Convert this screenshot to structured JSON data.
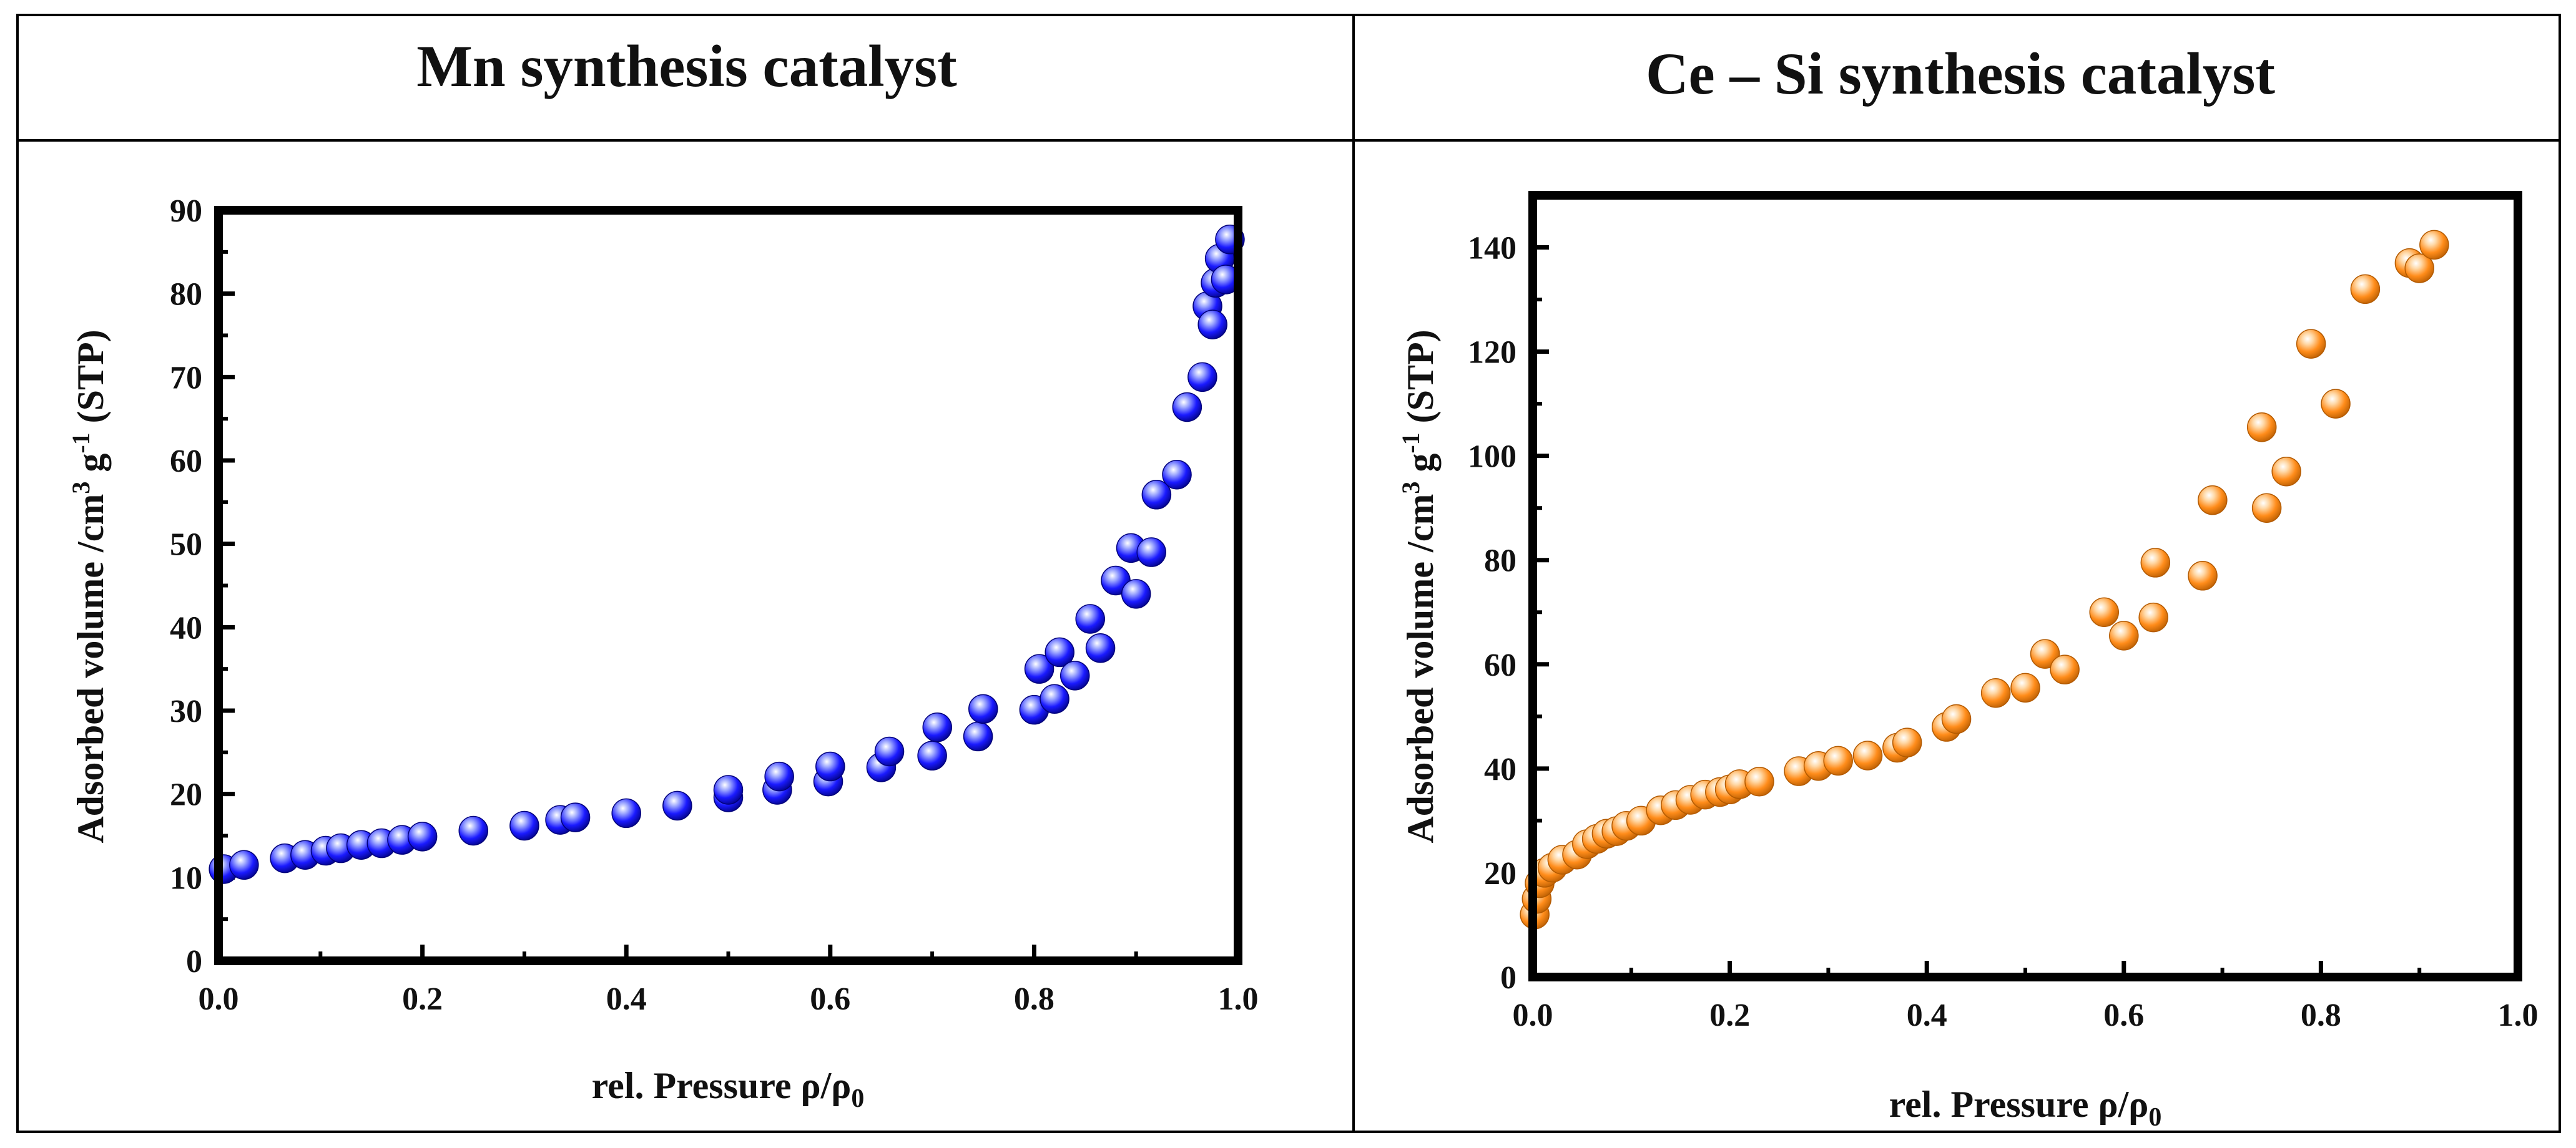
{
  "chart_data": [
    {
      "type": "scatter",
      "title": "Mn synthesis catalyst",
      "xlabel": "rel. Pressure ρ/ρ",
      "xlabel_sub": "0",
      "ylabel_prefix": "Adsorbed volume /cm",
      "ylabel_sup1": "3",
      "ylabel_mid": " g",
      "ylabel_sup2": "-1",
      "ylabel_suffix": " (STP)",
      "xlim": [
        0,
        1
      ],
      "ylim": [
        0,
        90
      ],
      "xticks": [
        "0.0",
        "0.2",
        "0.4",
        "0.6",
        "0.8",
        "1.0"
      ],
      "xtick_values": [
        0,
        0.2,
        0.4,
        0.6,
        0.8,
        1.0
      ],
      "yticks": [
        "0",
        "10",
        "20",
        "30",
        "40",
        "50",
        "60",
        "70",
        "80",
        "90"
      ],
      "ytick_values": [
        0,
        10,
        20,
        30,
        40,
        50,
        60,
        70,
        80,
        90
      ],
      "marker_color": "#1a1aff",
      "marker_highlight": "#9ea8ff",
      "marker_dark": "#00007a",
      "series": [
        {
          "name": "Mn",
          "x": [
            0.005,
            0.025,
            0.065,
            0.085,
            0.105,
            0.12,
            0.14,
            0.16,
            0.18,
            0.2,
            0.25,
            0.3,
            0.335,
            0.35,
            0.4,
            0.45,
            0.5,
            0.5,
            0.548,
            0.55,
            0.598,
            0.6,
            0.65,
            0.658,
            0.7,
            0.705,
            0.745,
            0.75,
            0.8,
            0.805,
            0.82,
            0.825,
            0.84,
            0.855,
            0.865,
            0.88,
            0.895,
            0.9,
            0.915,
            0.92,
            0.94,
            0.95,
            0.965,
            0.97,
            0.975,
            0.978,
            0.982,
            0.988,
            0.992
          ],
          "y": [
            11,
            11.5,
            12.3,
            12.7,
            13.2,
            13.5,
            13.9,
            14.1,
            14.5,
            14.9,
            15.6,
            16.2,
            16.9,
            17.2,
            17.7,
            18.6,
            19.6,
            20.5,
            20.5,
            22.1,
            21.5,
            23.3,
            23.2,
            25.1,
            24.6,
            28,
            26.9,
            30.2,
            30.1,
            35,
            31.4,
            37,
            34.2,
            41,
            37.5,
            45.6,
            49.5,
            44,
            49,
            55.9,
            58.3,
            66.4,
            70,
            78.5,
            76.3,
            81.3,
            84.2,
            81.7,
            86.5
          ]
        }
      ]
    },
    {
      "type": "scatter",
      "title": "Ce – Si synthesis catalyst",
      "xlabel": "rel. Pressure ρ/ρ",
      "xlabel_sub": "0",
      "ylabel_prefix": "Adsorbed volume /cm",
      "ylabel_sup1": "3",
      "ylabel_mid": " g",
      "ylabel_sup2": "-1",
      "ylabel_suffix": " (STP)",
      "xlim": [
        0,
        1
      ],
      "ylim": [
        0,
        150
      ],
      "xticks": [
        "0.0",
        "0.2",
        "0.4",
        "0.6",
        "0.8",
        "1.0"
      ],
      "xtick_values": [
        0,
        0.2,
        0.4,
        0.6,
        0.8,
        1.0
      ],
      "yticks": [
        "0",
        "20",
        "40",
        "60",
        "80",
        "100",
        "120",
        "140"
      ],
      "ytick_values": [
        0,
        20,
        40,
        60,
        80,
        100,
        120,
        140
      ],
      "marker_color": "#ff8c1a",
      "marker_highlight": "#ffd9a8",
      "marker_dark": "#b35a00",
      "series": [
        {
          "name": "Ce-Si",
          "x": [
            0.002,
            0.004,
            0.007,
            0.012,
            0.02,
            0.03,
            0.045,
            0.055,
            0.065,
            0.075,
            0.085,
            0.095,
            0.11,
            0.13,
            0.145,
            0.16,
            0.175,
            0.19,
            0.2,
            0.21,
            0.23,
            0.27,
            0.29,
            0.31,
            0.34,
            0.37,
            0.38,
            0.42,
            0.43,
            0.47,
            0.5,
            0.52,
            0.54,
            0.58,
            0.6,
            0.63,
            0.632,
            0.68,
            0.69,
            0.74,
            0.745,
            0.765,
            0.79,
            0.815,
            0.845,
            0.89,
            0.9,
            0.915
          ],
          "y": [
            12,
            15,
            18,
            20,
            21,
            22.5,
            23.5,
            25.5,
            26.5,
            27.5,
            28,
            29,
            30,
            32,
            33,
            34,
            35,
            35.5,
            36,
            37,
            37.5,
            39.5,
            40.5,
            41.5,
            42.5,
            44,
            45,
            48,
            49.5,
            54.5,
            55.5,
            62,
            59,
            70,
            65.5,
            69,
            79.5,
            77,
            91.5,
            105.5,
            90,
            97,
            121.5,
            110,
            132,
            137,
            136,
            140.5
          ]
        }
      ]
    }
  ]
}
